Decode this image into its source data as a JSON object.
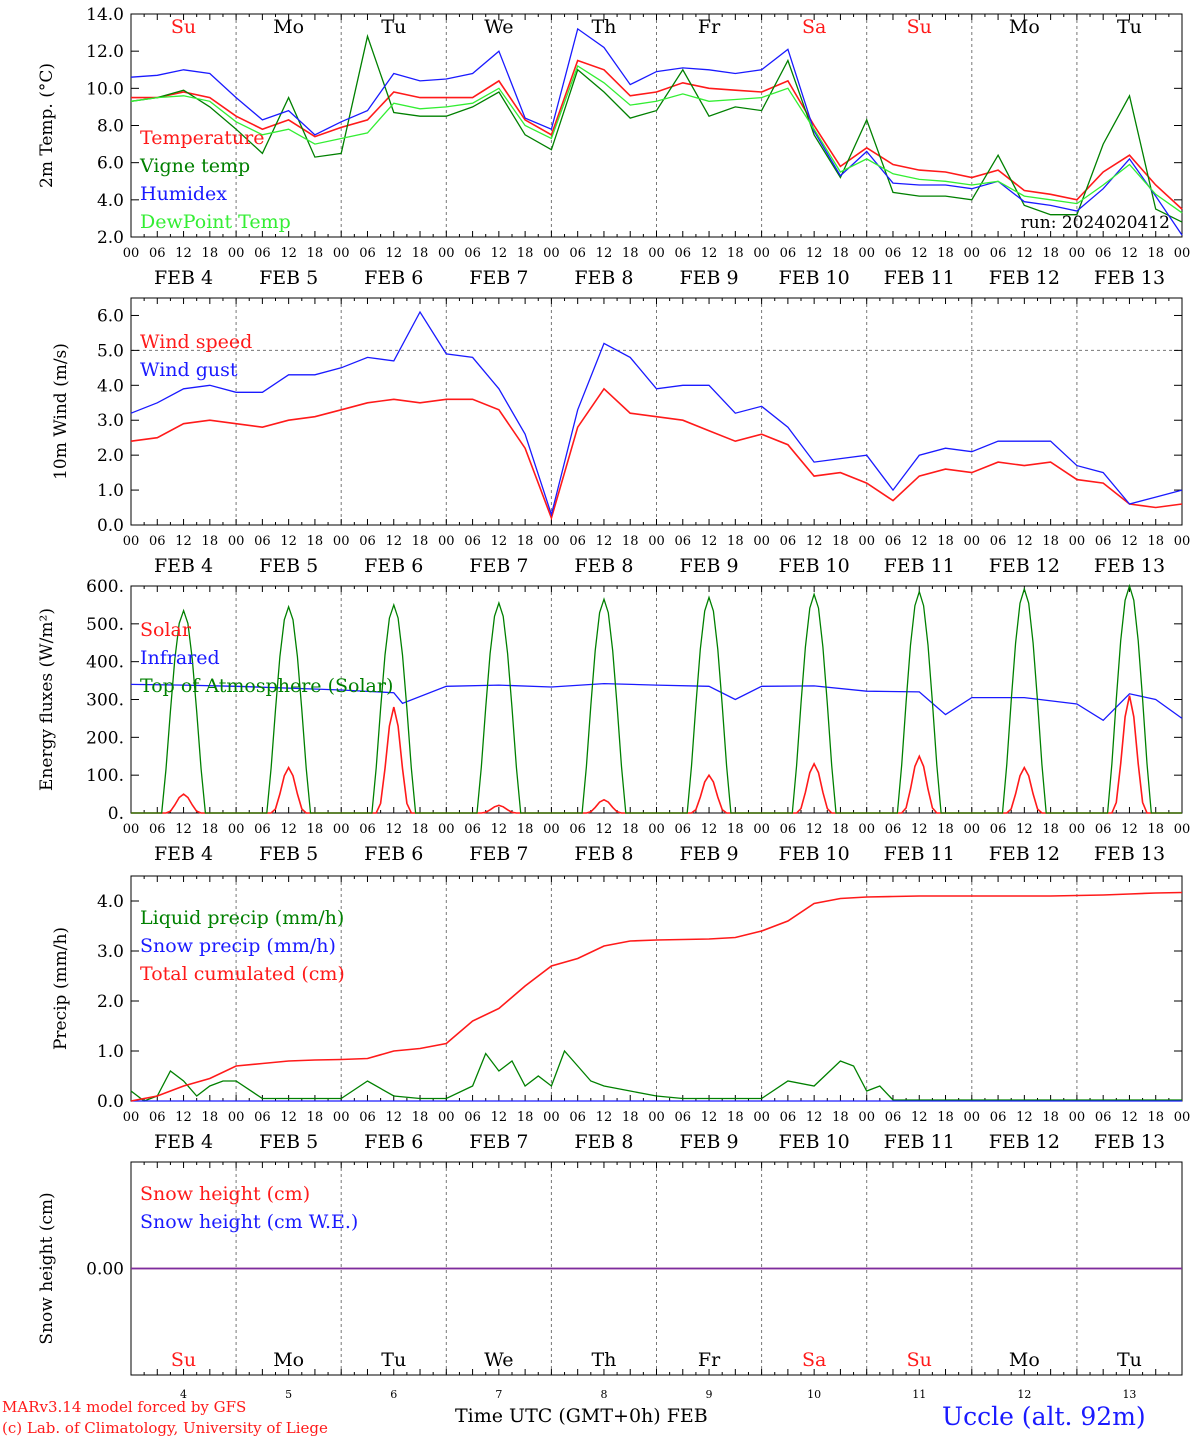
{
  "colors": {
    "red": "#ff1a1a",
    "green": "#008000",
    "blue": "#1a1aff",
    "lightgreen": "#33ee33",
    "purple": "#7a2ea0",
    "grid": "#777777"
  },
  "run_label": "run: 2024020412",
  "footer": {
    "model": "MARv3.14 model forced by GFS",
    "lab": "(c) Lab. of Climatology, University of Liege",
    "time_label": "Time UTC (GMT+0h)",
    "month": "FEB",
    "station": "Uccle (alt. 92m)"
  },
  "days": [
    {
      "label": "Su",
      "date": "FEB  4",
      "num": "4",
      "weekend": true
    },
    {
      "label": "Mo",
      "date": "FEB  5",
      "num": "5",
      "weekend": false
    },
    {
      "label": "Tu",
      "date": "FEB  6",
      "num": "6",
      "weekend": false
    },
    {
      "label": "We",
      "date": "FEB  7",
      "num": "7",
      "weekend": false
    },
    {
      "label": "Th",
      "date": "FEB  8",
      "num": "8",
      "weekend": false
    },
    {
      "label": "Fr",
      "date": "FEB  9",
      "num": "9",
      "weekend": false
    },
    {
      "label": "Sa",
      "date": "FEB 10",
      "num": "10",
      "weekend": true
    },
    {
      "label": "Su",
      "date": "FEB 11",
      "num": "11",
      "weekend": true
    },
    {
      "label": "Mo",
      "date": "FEB 12",
      "num": "12",
      "weekend": false
    },
    {
      "label": "Tu",
      "date": "FEB 13",
      "num": "13",
      "weekend": false
    }
  ],
  "hour_ticks": [
    "00",
    "06",
    "12",
    "18"
  ],
  "chart_data": [
    {
      "type": "line",
      "ylabel": "2m Temp. (°C)",
      "ylim": [
        2,
        14
      ],
      "yticks": [
        "2.0",
        "4.0",
        "6.0",
        "8.0",
        "10.0",
        "12.0",
        "14.0"
      ],
      "x_unit": "hours from FEB 4 00 UTC",
      "series": [
        {
          "name": "Temperature",
          "color": "red",
          "x": [
            0,
            6,
            12,
            18,
            24,
            30,
            36,
            42,
            48,
            54,
            60,
            66,
            72,
            78,
            84,
            90,
            96,
            102,
            108,
            114,
            120,
            126,
            132,
            138,
            144,
            150,
            156,
            162,
            168,
            174,
            180,
            186,
            192,
            198,
            204,
            210,
            216,
            222,
            228,
            234,
            240
          ],
          "y": [
            9.5,
            9.5,
            9.8,
            9.5,
            8.5,
            7.8,
            8.3,
            7.4,
            7.9,
            8.3,
            9.8,
            9.5,
            9.5,
            9.5,
            10.4,
            8.3,
            7.5,
            11.5,
            11.0,
            9.6,
            9.8,
            10.3,
            10.0,
            9.9,
            9.8,
            10.4,
            8.0,
            5.8,
            6.8,
            5.9,
            5.6,
            5.5,
            5.2,
            5.6,
            4.5,
            4.3,
            4.0,
            5.5,
            6.4,
            4.8,
            3.5
          ]
        },
        {
          "name": "Vigne temp",
          "color": "green",
          "x": [
            0,
            6,
            12,
            18,
            24,
            30,
            36,
            42,
            48,
            54,
            60,
            66,
            72,
            78,
            84,
            90,
            96,
            102,
            108,
            114,
            120,
            126,
            132,
            138,
            144,
            150,
            156,
            162,
            168,
            174,
            180,
            186,
            192,
            198,
            204,
            210,
            216,
            222,
            228,
            234,
            240
          ],
          "y": [
            9.3,
            9.5,
            9.9,
            9.0,
            7.8,
            6.5,
            9.5,
            6.3,
            6.5,
            12.8,
            8.7,
            8.5,
            8.5,
            9.0,
            9.8,
            7.5,
            6.7,
            11.0,
            9.8,
            8.4,
            8.8,
            11.0,
            8.5,
            9.0,
            8.8,
            11.5,
            7.5,
            5.2,
            8.3,
            4.4,
            4.2,
            4.2,
            4.0,
            6.4,
            3.7,
            3.2,
            3.2,
            7.0,
            9.6,
            3.5,
            2.8
          ]
        },
        {
          "name": "Humidex",
          "color": "blue",
          "x": [
            0,
            6,
            12,
            18,
            24,
            30,
            36,
            42,
            48,
            54,
            60,
            66,
            72,
            78,
            84,
            90,
            96,
            102,
            108,
            114,
            120,
            126,
            132,
            138,
            144,
            150,
            156,
            162,
            168,
            174,
            180,
            186,
            192,
            198,
            204,
            210,
            216,
            222,
            228,
            234,
            240
          ],
          "y": [
            10.6,
            10.7,
            11.0,
            10.8,
            9.5,
            8.3,
            8.8,
            7.5,
            8.2,
            8.8,
            10.8,
            10.4,
            10.5,
            10.8,
            12.0,
            8.4,
            7.8,
            13.2,
            12.2,
            10.2,
            10.9,
            11.1,
            11.0,
            10.8,
            11.0,
            12.1,
            7.7,
            5.3,
            6.6,
            4.9,
            4.8,
            4.8,
            4.6,
            5.0,
            3.9,
            3.7,
            3.4,
            4.6,
            6.2,
            4.2,
            2.1
          ]
        },
        {
          "name": "DewPoint Temp",
          "color": "lightgreen",
          "x": [
            0,
            6,
            12,
            18,
            24,
            30,
            36,
            42,
            48,
            54,
            60,
            66,
            72,
            78,
            84,
            90,
            96,
            102,
            108,
            114,
            120,
            126,
            132,
            138,
            144,
            150,
            156,
            162,
            168,
            174,
            180,
            186,
            192,
            198,
            204,
            210,
            216,
            222,
            228,
            234,
            240
          ],
          "y": [
            9.3,
            9.5,
            9.6,
            9.3,
            8.2,
            7.5,
            7.8,
            7.0,
            7.3,
            7.6,
            9.2,
            8.9,
            9.0,
            9.2,
            10.0,
            8.0,
            7.3,
            11.2,
            10.3,
            9.1,
            9.3,
            9.7,
            9.3,
            9.4,
            9.5,
            10.0,
            7.8,
            5.5,
            6.2,
            5.4,
            5.1,
            5.0,
            4.8,
            5.0,
            4.2,
            4.0,
            3.8,
            4.8,
            5.9,
            4.3,
            3.3
          ]
        }
      ]
    },
    {
      "type": "line",
      "ylabel": "10m Wind (m/s)",
      "ylim": [
        0,
        6.5
      ],
      "yticks": [
        "0.0",
        "1.0",
        "2.0",
        "3.0",
        "4.0",
        "5.0",
        "6.0"
      ],
      "x_unit": "hours from FEB 4 00 UTC",
      "series": [
        {
          "name": "Wind speed",
          "color": "red",
          "x": [
            0,
            6,
            12,
            18,
            24,
            30,
            36,
            42,
            48,
            54,
            60,
            66,
            72,
            78,
            84,
            90,
            96,
            102,
            108,
            114,
            120,
            126,
            132,
            138,
            144,
            150,
            156,
            162,
            168,
            174,
            180,
            186,
            192,
            198,
            204,
            210,
            216,
            222,
            228,
            234,
            240
          ],
          "y": [
            2.4,
            2.5,
            2.9,
            3.0,
            2.9,
            2.8,
            3.0,
            3.1,
            3.3,
            3.5,
            3.6,
            3.5,
            3.6,
            3.6,
            3.3,
            2.2,
            0.2,
            2.8,
            3.9,
            3.2,
            3.1,
            3.0,
            2.7,
            2.4,
            2.6,
            2.3,
            1.4,
            1.5,
            1.2,
            0.7,
            1.4,
            1.6,
            1.5,
            1.8,
            1.7,
            1.8,
            1.3,
            1.2,
            0.6,
            0.5,
            0.6
          ]
        },
        {
          "name": "Wind gust",
          "color": "blue",
          "x": [
            0,
            6,
            12,
            18,
            24,
            30,
            36,
            42,
            48,
            54,
            60,
            66,
            72,
            78,
            84,
            90,
            96,
            102,
            108,
            114,
            120,
            126,
            132,
            138,
            144,
            150,
            156,
            162,
            168,
            174,
            180,
            186,
            192,
            198,
            204,
            210,
            216,
            222,
            228,
            234,
            240
          ],
          "y": [
            3.2,
            3.5,
            3.9,
            4.0,
            3.8,
            3.8,
            4.3,
            4.3,
            4.5,
            4.8,
            4.7,
            6.1,
            4.9,
            4.8,
            3.9,
            2.6,
            0.3,
            3.3,
            5.2,
            4.8,
            3.9,
            4.0,
            4.0,
            3.2,
            3.4,
            2.8,
            1.8,
            1.9,
            2.0,
            1.0,
            2.0,
            2.2,
            2.1,
            2.4,
            2.4,
            2.4,
            1.7,
            1.5,
            0.6,
            0.8,
            1.0
          ]
        }
      ]
    },
    {
      "type": "line",
      "ylabel": "Energy fluxes (W/m²)",
      "ylim": [
        0,
        600
      ],
      "yticks": [
        "0.",
        "100.",
        "200.",
        "300.",
        "400.",
        "500.",
        "600."
      ],
      "x_unit": "hours from FEB 4 00 UTC",
      "series": [
        {
          "name": "Solar",
          "color": "red",
          "peak_hour": 12,
          "daily_peak": [
            50,
            120,
            280,
            20,
            35,
            100,
            130,
            150,
            120,
            310
          ]
        },
        {
          "name": "Infrared",
          "color": "blue",
          "x": [
            0,
            12,
            24,
            36,
            48,
            60,
            62,
            72,
            84,
            96,
            108,
            120,
            132,
            138,
            144,
            156,
            168,
            180,
            186,
            192,
            204,
            216,
            222,
            228,
            234,
            240
          ],
          "y": [
            340,
            338,
            335,
            330,
            325,
            318,
            290,
            335,
            338,
            333,
            342,
            338,
            335,
            300,
            335,
            336,
            322,
            320,
            260,
            305,
            305,
            288,
            245,
            315,
            300,
            250
          ]
        },
        {
          "name": "Top of Atmosphere (Solar)",
          "color": "green",
          "peak_hour": 12,
          "daily_peak": [
            535,
            545,
            550,
            555,
            565,
            570,
            578,
            585,
            592,
            600
          ]
        }
      ]
    },
    {
      "type": "line",
      "ylabel": "Precip (mm/h)",
      "ylim": [
        0,
        4.5
      ],
      "yticks": [
        "0.0",
        "1.0",
        "2.0",
        "3.0",
        "4.0"
      ],
      "x_unit": "hours from FEB 4 00 UTC",
      "series": [
        {
          "name": "Liquid precip (mm/h)",
          "color": "green",
          "x": [
            0,
            3,
            6,
            9,
            12,
            15,
            18,
            21,
            24,
            30,
            36,
            42,
            48,
            54,
            60,
            66,
            72,
            78,
            81,
            84,
            87,
            90,
            93,
            96,
            99,
            102,
            105,
            108,
            114,
            120,
            126,
            132,
            138,
            144,
            150,
            156,
            162,
            165,
            168,
            171,
            174,
            177,
            180,
            186,
            192,
            198,
            204,
            210,
            216,
            222,
            228,
            234,
            240
          ],
          "y": [
            0.2,
            0.0,
            0.1,
            0.6,
            0.4,
            0.1,
            0.3,
            0.4,
            0.4,
            0.05,
            0.05,
            0.05,
            0.05,
            0.4,
            0.1,
            0.05,
            0.05,
            0.3,
            0.95,
            0.6,
            0.8,
            0.3,
            0.5,
            0.3,
            1.0,
            0.7,
            0.4,
            0.3,
            0.2,
            0.1,
            0.05,
            0.05,
            0.05,
            0.05,
            0.4,
            0.3,
            0.8,
            0.7,
            0.2,
            0.3,
            0.02,
            0.02,
            0.02,
            0.02,
            0.02,
            0.02,
            0.02,
            0.02,
            0.02,
            0.02,
            0.02,
            0.02,
            0.02
          ]
        },
        {
          "name": "Snow precip (mm/h)",
          "color": "blue",
          "x": [
            0,
            240
          ],
          "y": [
            0,
            0
          ]
        },
        {
          "name": "Total cumulated (cm)",
          "color": "red",
          "x": [
            0,
            6,
            12,
            18,
            24,
            30,
            36,
            42,
            48,
            54,
            60,
            66,
            72,
            78,
            84,
            90,
            96,
            102,
            108,
            114,
            120,
            126,
            132,
            138,
            144,
            150,
            156,
            162,
            168,
            174,
            180,
            186,
            192,
            198,
            204,
            210,
            216,
            222,
            228,
            234,
            240
          ],
          "y": [
            0.0,
            0.1,
            0.3,
            0.45,
            0.7,
            0.75,
            0.8,
            0.82,
            0.83,
            0.85,
            1.0,
            1.05,
            1.15,
            1.6,
            1.85,
            2.3,
            2.7,
            2.85,
            3.1,
            3.2,
            3.22,
            3.23,
            3.24,
            3.27,
            3.4,
            3.6,
            3.95,
            4.05,
            4.08,
            4.09,
            4.1,
            4.1,
            4.1,
            4.1,
            4.1,
            4.1,
            4.11,
            4.12,
            4.14,
            4.16,
            4.17
          ]
        }
      ]
    },
    {
      "type": "line",
      "ylabel": "Snow height (cm)",
      "yticks": [
        "0.00"
      ],
      "x_unit": "hours from FEB 4 00 UTC",
      "series": [
        {
          "name": "Snow height (cm)",
          "color": "red",
          "x": [
            0,
            240
          ],
          "y": [
            0,
            0
          ]
        },
        {
          "name": "Snow height (cm W.E.)",
          "color": "blue",
          "x": [
            0,
            240
          ],
          "y": [
            0,
            0
          ]
        }
      ]
    }
  ]
}
